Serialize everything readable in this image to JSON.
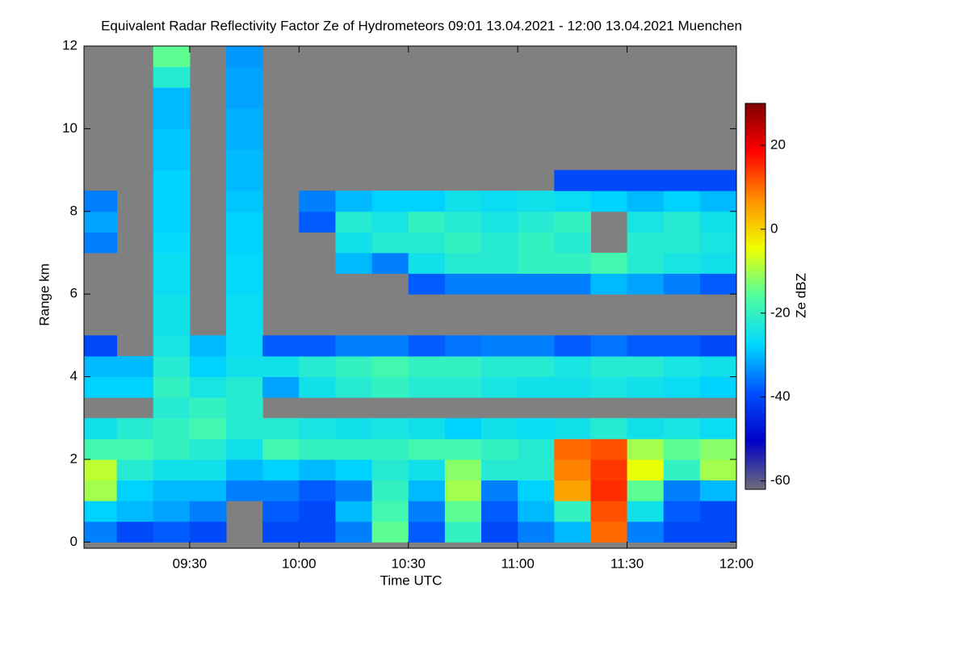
{
  "chart_data": {
    "type": "heatmap",
    "title": "Equivalent Radar Reflectivity Factor Ze of Hydrometeors   09:01 13.04.2021 - 12:00 13.04.2021 Muenchen",
    "x_label": "Time UTC",
    "y_label": "Range km",
    "colorbar_label": "Ze dBZ",
    "x": [
      "09:01",
      "09:10",
      "09:20",
      "09:30",
      "09:40",
      "09:50",
      "10:00",
      "10:10",
      "10:20",
      "10:30",
      "10:40",
      "10:50",
      "11:00",
      "11:10",
      "11:20",
      "11:30",
      "11:40",
      "11:50",
      "12:00"
    ],
    "y": [
      0,
      0.5,
      1,
      1.5,
      2,
      2.5,
      3,
      3.5,
      4,
      4.5,
      5,
      5.5,
      6,
      6.5,
      7,
      7.5,
      8,
      8.5,
      9,
      9.5,
      10,
      10.5,
      11,
      11.5,
      12
    ],
    "xlim": [
      "09:01",
      "12:00"
    ],
    "xticks": [
      "09:30",
      "10:00",
      "10:30",
      "11:00",
      "11:30",
      "12:00"
    ],
    "ylim": [
      -0.15,
      12
    ],
    "yticks": [
      0,
      2,
      4,
      6,
      8,
      10,
      12
    ],
    "zlim": [
      -62,
      30
    ],
    "colorbar_ticks": [
      20,
      0,
      -20,
      -40,
      -60
    ],
    "colormap": [
      "#6e6e78",
      "#0000c8",
      "#0050ff",
      "#00d8ff",
      "#50ffa0",
      "#f0ff00",
      "#ff9000",
      "#ff0000",
      "#800000"
    ],
    "background": "#808080",
    "z": [
      [
        -35,
        -40,
        -38,
        -40,
        null,
        -40,
        -40,
        -35,
        -15,
        -38,
        -20,
        -40,
        -35,
        -30,
        10,
        -35,
        -40,
        -40
      ],
      [
        -28,
        -30,
        -32,
        -35,
        null,
        -38,
        -40,
        -30,
        -18,
        -35,
        -15,
        -38,
        -30,
        -20,
        12,
        -25,
        -38,
        -40
      ],
      [
        -10,
        -28,
        -30,
        -30,
        -35,
        -35,
        -38,
        -35,
        -20,
        -30,
        -10,
        -35,
        -28,
        5,
        15,
        -15,
        -35,
        -30
      ],
      [
        -8,
        -22,
        -25,
        -25,
        -30,
        -28,
        -30,
        -28,
        -22,
        -25,
        -12,
        -22,
        -22,
        8,
        14,
        -5,
        -20,
        -10
      ],
      [
        -18,
        -18,
        -20,
        -22,
        -25,
        -18,
        -20,
        -20,
        -20,
        -18,
        -18,
        -20,
        -22,
        10,
        12,
        -10,
        -15,
        -12
      ],
      [
        -25,
        -22,
        -20,
        -18,
        -22,
        -22,
        -24,
        -25,
        -24,
        -25,
        -28,
        -25,
        -26,
        -25,
        -22,
        -25,
        -24,
        -26
      ],
      [
        null,
        null,
        -22,
        -20,
        -22,
        null,
        null,
        null,
        null,
        null,
        null,
        null,
        null,
        null,
        null,
        null,
        null,
        null
      ],
      [
        -28,
        -28,
        -20,
        -24,
        -22,
        -32,
        -25,
        -22,
        -20,
        -22,
        -22,
        -24,
        -25,
        -25,
        -24,
        -25,
        -26,
        -28
      ],
      [
        -30,
        -30,
        -22,
        -28,
        -25,
        -25,
        -22,
        -20,
        -18,
        -20,
        -20,
        -22,
        -22,
        -24,
        -22,
        -22,
        -24,
        -25
      ],
      [
        -40,
        null,
        -24,
        -30,
        -26,
        -38,
        -38,
        -35,
        -35,
        -38,
        -36,
        -35,
        -35,
        -38,
        -36,
        -38,
        -38,
        -40
      ],
      [
        null,
        null,
        -25,
        null,
        -26,
        null,
        null,
        null,
        null,
        null,
        null,
        null,
        null,
        null,
        null,
        null,
        null,
        null
      ],
      [
        null,
        null,
        -25,
        null,
        -26,
        null,
        null,
        null,
        null,
        null,
        null,
        null,
        null,
        null,
        null,
        null,
        null,
        null
      ],
      [
        null,
        null,
        -26,
        null,
        -27,
        null,
        null,
        null,
        null,
        -38,
        -35,
        -35,
        -35,
        -35,
        -30,
        -32,
        -35,
        -38
      ],
      [
        null,
        null,
        -26,
        null,
        -27,
        null,
        null,
        -30,
        -35,
        -25,
        -22,
        -22,
        -20,
        -20,
        -18,
        -22,
        -24,
        -25
      ],
      [
        -35,
        null,
        -27,
        null,
        -28,
        null,
        null,
        -25,
        -22,
        -22,
        -20,
        -22,
        -20,
        -22,
        null,
        -22,
        -22,
        -24
      ],
      [
        -32,
        null,
        -28,
        null,
        -28,
        null,
        -38,
        -22,
        -24,
        -20,
        -22,
        -24,
        -22,
        -20,
        null,
        -24,
        -22,
        -25
      ],
      [
        -35,
        null,
        -28,
        null,
        -29,
        null,
        -35,
        -30,
        -28,
        -28,
        -25,
        -26,
        -25,
        -26,
        -28,
        -30,
        -28,
        -30
      ],
      [
        null,
        null,
        -28,
        null,
        -30,
        null,
        null,
        null,
        null,
        null,
        null,
        null,
        null,
        -40,
        -40,
        -40,
        -40,
        -40
      ],
      [
        null,
        null,
        -29,
        null,
        -30,
        null,
        null,
        null,
        null,
        null,
        null,
        null,
        null,
        null,
        null,
        null,
        null,
        null
      ],
      [
        null,
        null,
        -29,
        null,
        -31,
        null,
        null,
        null,
        null,
        null,
        null,
        null,
        null,
        null,
        null,
        null,
        null,
        null
      ],
      [
        null,
        null,
        -30,
        null,
        -31,
        null,
        null,
        null,
        null,
        null,
        null,
        null,
        null,
        null,
        null,
        null,
        null,
        null
      ],
      [
        null,
        null,
        -30,
        null,
        -32,
        null,
        null,
        null,
        null,
        null,
        null,
        null,
        null,
        null,
        null,
        null,
        null,
        null
      ],
      [
        null,
        null,
        -22,
        null,
        -32,
        null,
        null,
        null,
        null,
        null,
        null,
        null,
        null,
        null,
        null,
        null,
        null,
        null
      ],
      [
        null,
        null,
        -15,
        null,
        -33,
        null,
        null,
        null,
        null,
        null,
        null,
        null,
        null,
        null,
        null,
        null,
        null,
        null
      ]
    ]
  }
}
